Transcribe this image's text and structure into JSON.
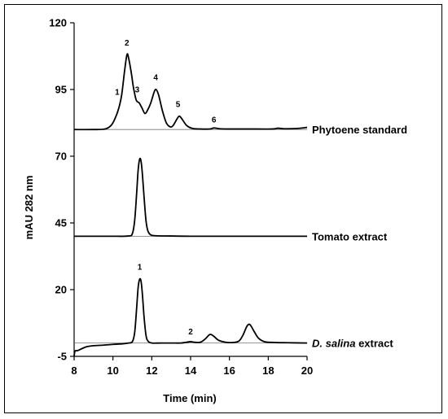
{
  "chart_data": {
    "type": "line",
    "xlabel": "Time (min)",
    "ylabel": "mAU 282 nm",
    "xlim": [
      8,
      20
    ],
    "ylim": [
      -5,
      120
    ],
    "x_ticks": [
      8,
      10,
      12,
      14,
      16,
      18,
      20
    ],
    "y_ticks": [
      -5,
      20,
      45,
      70,
      95,
      120
    ],
    "grid": false,
    "legend": "none",
    "series": [
      {
        "name": "Phytoene standard",
        "baseline": 80,
        "points": [
          [
            8,
            80
          ],
          [
            9,
            80
          ],
          [
            9.6,
            80.2
          ],
          [
            9.9,
            81.5
          ],
          [
            10.1,
            84
          ],
          [
            10.3,
            88
          ],
          [
            10.45,
            93
          ],
          [
            10.6,
            102
          ],
          [
            10.72,
            108
          ],
          [
            10.8,
            107
          ],
          [
            10.95,
            101
          ],
          [
            11.05,
            96
          ],
          [
            11.2,
            91
          ],
          [
            11.35,
            90
          ],
          [
            11.5,
            88
          ],
          [
            11.65,
            86
          ],
          [
            11.8,
            87.5
          ],
          [
            11.95,
            90
          ],
          [
            12.12,
            94
          ],
          [
            12.22,
            95
          ],
          [
            12.35,
            93
          ],
          [
            12.55,
            87
          ],
          [
            12.75,
            82.5
          ],
          [
            12.95,
            81
          ],
          [
            13.1,
            81.5
          ],
          [
            13.3,
            84
          ],
          [
            13.42,
            85
          ],
          [
            13.55,
            84
          ],
          [
            13.8,
            81.5
          ],
          [
            14.1,
            80.4
          ],
          [
            14.5,
            80.2
          ],
          [
            15,
            80.2
          ],
          [
            15.2,
            80.6
          ],
          [
            15.5,
            80.3
          ],
          [
            16,
            80.2
          ],
          [
            17,
            80.2
          ],
          [
            18.2,
            80.2
          ],
          [
            18.5,
            80.5
          ],
          [
            18.8,
            80.3
          ],
          [
            19.5,
            80.4
          ],
          [
            20,
            80.8
          ]
        ],
        "peak_labels": [
          {
            "text": "1",
            "x": 10.22,
            "y": 93
          },
          {
            "text": "2",
            "x": 10.72,
            "y": 111.5
          },
          {
            "text": "3",
            "x": 11.25,
            "y": 94
          },
          {
            "text": "4",
            "x": 12.2,
            "y": 98.5
          },
          {
            "text": "5",
            "x": 13.35,
            "y": 88.5
          },
          {
            "text": "6",
            "x": 15.2,
            "y": 82.7
          }
        ]
      },
      {
        "name": "Tomato extract",
        "baseline": 40,
        "points": [
          [
            8,
            40
          ],
          [
            9,
            40
          ],
          [
            10,
            40
          ],
          [
            10.8,
            40.1
          ],
          [
            11.0,
            41
          ],
          [
            11.12,
            46
          ],
          [
            11.22,
            56
          ],
          [
            11.3,
            65
          ],
          [
            11.38,
            69
          ],
          [
            11.45,
            68
          ],
          [
            11.52,
            63
          ],
          [
            11.6,
            55
          ],
          [
            11.7,
            46
          ],
          [
            11.8,
            42
          ],
          [
            11.95,
            40.5
          ],
          [
            12.2,
            40.2
          ],
          [
            13,
            40.1
          ],
          [
            14,
            40
          ],
          [
            16,
            40
          ],
          [
            18,
            40
          ],
          [
            20,
            40
          ]
        ],
        "peak_labels": []
      },
      {
        "name": "D. salina extract",
        "label_italic": "D. salina",
        "label_rest": " extract",
        "baseline": 0,
        "points": [
          [
            8,
            -5
          ],
          [
            8.05,
            -3
          ],
          [
            8.2,
            -2.8
          ],
          [
            8.6,
            -1.5
          ],
          [
            9,
            -1
          ],
          [
            9.5,
            -0.8
          ],
          [
            10,
            -0.5
          ],
          [
            10.5,
            -0.3
          ],
          [
            10.8,
            0
          ],
          [
            11.0,
            0.5
          ],
          [
            11.12,
            4
          ],
          [
            11.22,
            13
          ],
          [
            11.3,
            21
          ],
          [
            11.38,
            24
          ],
          [
            11.45,
            23
          ],
          [
            11.52,
            18
          ],
          [
            11.6,
            10
          ],
          [
            11.7,
            3
          ],
          [
            11.8,
            0.8
          ],
          [
            12,
            0
          ],
          [
            12.5,
            0
          ],
          [
            13,
            0
          ],
          [
            13.5,
            0
          ],
          [
            13.8,
            0.3
          ],
          [
            14.0,
            0.5
          ],
          [
            14.2,
            0.3
          ],
          [
            14.5,
            0.3
          ],
          [
            14.75,
            1.5
          ],
          [
            14.95,
            3
          ],
          [
            15.05,
            3.2
          ],
          [
            15.2,
            2.5
          ],
          [
            15.45,
            1
          ],
          [
            15.8,
            0.3
          ],
          [
            16.2,
            0.2
          ],
          [
            16.5,
            0.8
          ],
          [
            16.7,
            3
          ],
          [
            16.88,
            6
          ],
          [
            17.0,
            7
          ],
          [
            17.1,
            6.5
          ],
          [
            17.3,
            4
          ],
          [
            17.5,
            1.8
          ],
          [
            17.8,
            0.5
          ],
          [
            18.3,
            0.2
          ],
          [
            19,
            0.1
          ],
          [
            20,
            0
          ]
        ],
        "peak_labels": [
          {
            "text": "1",
            "x": 11.38,
            "y": 27.5
          },
          {
            "text": "2",
            "x": 14.0,
            "y": 3.2
          }
        ]
      }
    ]
  }
}
